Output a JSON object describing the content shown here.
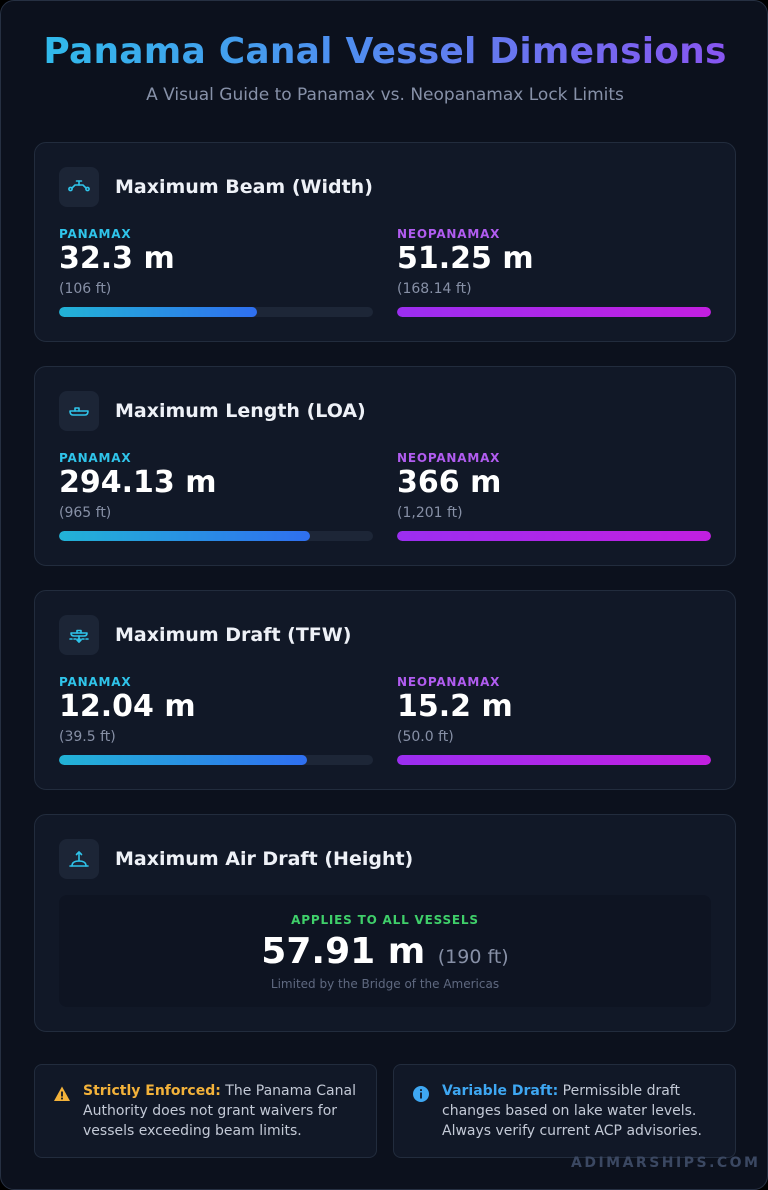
{
  "header": {
    "title": "Panama Canal Vessel Dimensions",
    "subtitle": "A Visual Guide to Panamax vs. Neopanamax Lock Limits"
  },
  "cards": [
    {
      "title": "Maximum Beam (Width)",
      "icon": "beam-width-icon",
      "panamax": {
        "label": "PANAMAX",
        "value": "32.3 m",
        "imperial": "(106 ft)",
        "fill": 0.63
      },
      "neopanamax": {
        "label": "NEOPANAMAX",
        "value": "51.25 m",
        "imperial": "(168.14 ft)",
        "fill": 1.0
      }
    },
    {
      "title": "Maximum Length (LOA)",
      "icon": "ship-length-icon",
      "panamax": {
        "label": "PANAMAX",
        "value": "294.13 m",
        "imperial": "(965 ft)",
        "fill": 0.8
      },
      "neopanamax": {
        "label": "NEOPANAMAX",
        "value": "366 m",
        "imperial": "(1,201 ft)",
        "fill": 1.0
      }
    },
    {
      "title": "Maximum Draft (TFW)",
      "icon": "ship-draft-icon",
      "panamax": {
        "label": "PANAMAX",
        "value": "12.04 m",
        "imperial": "(39.5 ft)",
        "fill": 0.79
      },
      "neopanamax": {
        "label": "NEOPANAMAX",
        "value": "15.2 m",
        "imperial": "(50.0 ft)",
        "fill": 1.0
      }
    }
  ],
  "air_draft": {
    "title": "Maximum Air Draft (Height)",
    "icon": "air-draft-icon",
    "label": "APPLIES TO ALL VESSELS",
    "value": "57.91 m",
    "imperial": "(190 ft)",
    "note": "Limited by the Bridge of the Americas"
  },
  "notes": [
    {
      "icon": "warning-icon",
      "head": "Strictly Enforced:",
      "text": "The Panama Canal Authority does not grant waivers for vessels exceeding beam limits."
    },
    {
      "icon": "info-icon",
      "head": "Variable Draft:",
      "text": "Permissible draft changes based on lake water levels. Always verify current ACP advisories."
    }
  ],
  "brand": "ADIMARSHIPS.COM",
  "colors": {
    "panamax": "#2fc4ea",
    "neopanamax": "#b15cf0",
    "applies": "#3fcf6a",
    "warning": "#f3b23a",
    "info": "#3ea7f2"
  }
}
